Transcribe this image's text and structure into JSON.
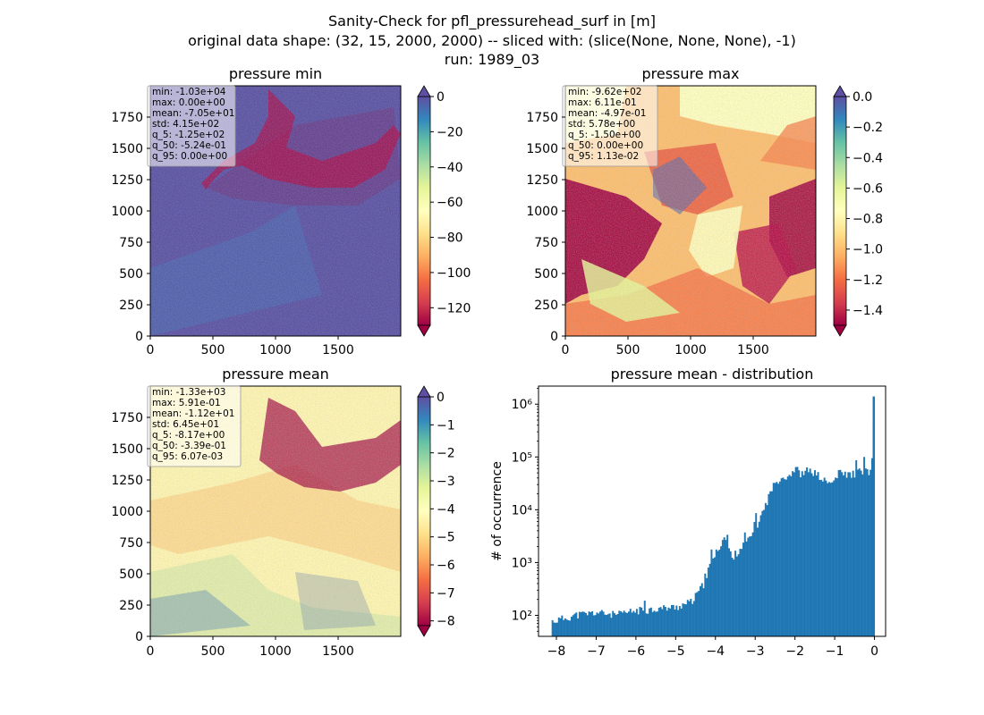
{
  "figure": {
    "title_lines": [
      "Sanity-Check for pfl_pressurehead_surf in [m]",
      "original data shape: (32, 15, 2000, 2000) -- sliced with: (slice(None, None, None), -1)",
      "run: 1989_03"
    ]
  },
  "colormap": {
    "name": "Spectral",
    "stops": [
      "#9e0142",
      "#d53e4f",
      "#f46d43",
      "#fdae61",
      "#fee08b",
      "#ffffbf",
      "#e6f598",
      "#abdda4",
      "#66c2a5",
      "#3288bd",
      "#5e4fa2"
    ]
  },
  "chart_data": [
    {
      "type": "heatmap",
      "title": "pressure min",
      "xticks": [
        "0",
        "500",
        "1000",
        "1500"
      ],
      "yticks": [
        "0",
        "250",
        "500",
        "750",
        "1000",
        "1250",
        "1500",
        "1750"
      ],
      "xlim": [
        0,
        2000
      ],
      "ylim": [
        0,
        2000
      ],
      "colorbar": {
        "vmin": -130,
        "vmax": 0,
        "ticks": [
          "0",
          "−20",
          "−40",
          "−60",
          "−80",
          "−100",
          "−120"
        ],
        "tick_values": [
          0,
          -20,
          -40,
          -60,
          -80,
          -100,
          -120
        ]
      },
      "stats": [
        "min: -1.03e+04",
        "max: 0.00e+00",
        "mean: -7.05e+01",
        "std: 4.15e+02",
        "q_5: -1.25e+02",
        "q_50: -5.24e-01",
        "q_95: 0.00e+00"
      ]
    },
    {
      "type": "heatmap",
      "title": "pressure max",
      "xticks": [
        "0",
        "500",
        "1000",
        "1500"
      ],
      "yticks": [
        "0",
        "250",
        "500",
        "750",
        "1000",
        "1250",
        "1500",
        "1750"
      ],
      "xlim": [
        0,
        2000
      ],
      "ylim": [
        0,
        2000
      ],
      "colorbar": {
        "vmin": -1.5,
        "vmax": 0.0,
        "ticks": [
          "0.0",
          "−0.2",
          "−0.4",
          "−0.6",
          "−0.8",
          "−1.0",
          "−1.2",
          "−1.4"
        ],
        "tick_values": [
          0.0,
          -0.2,
          -0.4,
          -0.6,
          -0.8,
          -1.0,
          -1.2,
          -1.4
        ]
      },
      "stats": [
        "min: -9.62e+02",
        "max: 6.11e-01",
        "mean: -4.97e-01",
        "std: 5.78e+00",
        "q_5: -1.50e+00",
        "q_50: 0.00e+00",
        "q_95: 1.13e-02"
      ]
    },
    {
      "type": "heatmap",
      "title": "pressure mean",
      "xticks": [
        "0",
        "500",
        "1000",
        "1500"
      ],
      "yticks": [
        "0",
        "250",
        "500",
        "750",
        "1000",
        "1250",
        "1500",
        "1750"
      ],
      "xlim": [
        0,
        2000
      ],
      "ylim": [
        0,
        2000
      ],
      "colorbar": {
        "vmin": -8.17,
        "vmax": 0,
        "ticks": [
          "0",
          "−1",
          "−2",
          "−3",
          "−4",
          "−5",
          "−6",
          "−7",
          "−8"
        ],
        "tick_values": [
          0,
          -1,
          -2,
          -3,
          -4,
          -5,
          -6,
          -7,
          -8
        ]
      },
      "stats": [
        "min: -1.33e+03",
        "max: 5.91e-01",
        "mean: -1.12e+01",
        "std: 6.45e+01",
        "q_5: -8.17e+00",
        "q_50: -3.39e-01",
        "q_95: 6.07e-03"
      ]
    },
    {
      "type": "bar",
      "title": "pressure mean - distribution",
      "ylabel": "# of occurrence",
      "xlabel": "",
      "yscale": "log",
      "xlim": [
        -8.45,
        0.28
      ],
      "ylim": [
        40,
        2200000
      ],
      "xticks": [
        "−8",
        "−7",
        "−6",
        "−5",
        "−4",
        "−3",
        "−2",
        "−1",
        "0"
      ],
      "xtick_values": [
        -8,
        -7,
        -6,
        -5,
        -4,
        -3,
        -2,
        -1,
        0
      ],
      "yticks": [
        "10²",
        "10³",
        "10⁴",
        "10⁵",
        "10⁶"
      ],
      "ytick_values": [
        100,
        1000,
        10000,
        100000,
        1000000
      ],
      "bar_color": "#1f77b4",
      "x": [
        -8.12,
        -7.5,
        -7.0,
        -6.5,
        -6.0,
        -5.5,
        -5.0,
        -4.6,
        -4.3,
        -4.15,
        -4.0,
        -3.8,
        -3.6,
        -3.4,
        -3.2,
        -3.0,
        -2.8,
        -2.6,
        -2.4,
        -2.2,
        -2.0,
        -1.85,
        -1.7,
        -1.5,
        -1.3,
        -1.1,
        -0.9,
        -0.7,
        -0.5,
        -0.3,
        -0.1,
        0.0
      ],
      "values": [
        75,
        100,
        110,
        100,
        120,
        130,
        140,
        180,
        400,
        900,
        1500,
        3000,
        1200,
        1800,
        2500,
        4500,
        10000,
        25000,
        40000,
        42000,
        60000,
        45000,
        55000,
        48000,
        35000,
        30000,
        50000,
        45000,
        48000,
        55000,
        50000,
        1400000
      ]
    }
  ]
}
